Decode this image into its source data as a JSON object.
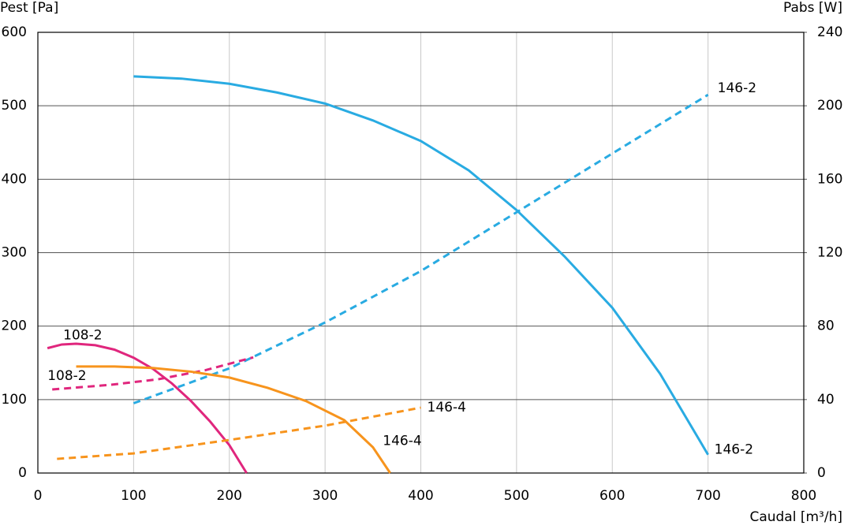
{
  "chart_data": {
    "type": "line",
    "ylabel": "Pest [Pa]",
    "y2label": "Pabs [W]",
    "xlabel": "Caudal [m³/h]",
    "xlim": [
      0,
      800
    ],
    "xticks": [
      0,
      100,
      200,
      300,
      400,
      500,
      600,
      700,
      800
    ],
    "ylim": [
      0,
      600
    ],
    "yticks": [
      0,
      100,
      200,
      300,
      400,
      500,
      600
    ],
    "y2lim": [
      0,
      240
    ],
    "y2ticks": [
      0,
      40,
      80,
      120,
      160,
      200,
      240
    ],
    "grid": true,
    "series": [
      {
        "name": "146-2",
        "color": "#29abe2",
        "x": [
          100,
          150,
          200,
          250,
          300,
          350,
          400,
          450,
          500,
          550,
          600,
          650,
          700
        ],
        "values": [
          540,
          537,
          530,
          518,
          503,
          480,
          452,
          412,
          358,
          295,
          225,
          135,
          25
        ]
      },
      {
        "name": "146-2",
        "color": "#29abe2",
        "axis": "y2",
        "x": [
          100,
          200,
          300,
          400,
          500,
          600,
          700
        ],
        "values": [
          38,
          57,
          82,
          110,
          142,
          174,
          206
        ]
      },
      {
        "name": "108-2",
        "color": "#e0267d",
        "x": [
          10,
          25,
          40,
          60,
          80,
          100,
          120,
          140,
          160,
          180,
          200,
          218
        ],
        "values": [
          170,
          175,
          176,
          174,
          168,
          157,
          142,
          122,
          98,
          70,
          38,
          0
        ]
      },
      {
        "name": "108-2",
        "color": "#e0267d",
        "axis": "y2",
        "x": [
          15,
          75,
          125,
          175,
          225
        ],
        "values": [
          45.5,
          48,
          51,
          56,
          63
        ]
      },
      {
        "name": "146-4",
        "color": "#f7941d",
        "x": [
          40,
          80,
          120,
          160,
          200,
          240,
          280,
          320,
          350,
          368
        ],
        "values": [
          145,
          145,
          143,
          138,
          130,
          116,
          98,
          72,
          35,
          0
        ]
      },
      {
        "name": "146-4",
        "color": "#f7941d",
        "axis": "y2",
        "x": [
          20,
          100,
          200,
          300,
          400
        ],
        "values": [
          7.7,
          10.7,
          18,
          25.8,
          35.6
        ]
      }
    ]
  }
}
